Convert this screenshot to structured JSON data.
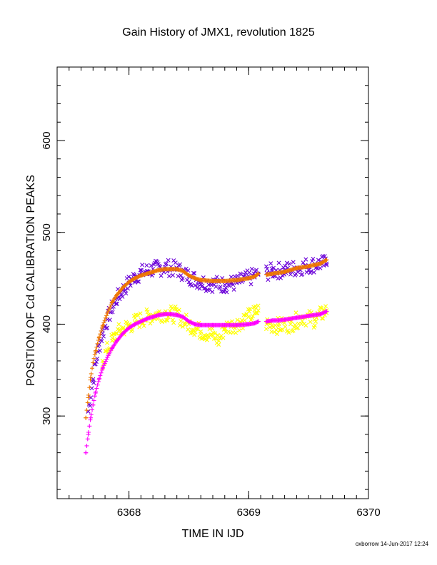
{
  "chart_data": {
    "type": "scatter",
    "title": "Gain History of JMX1, revolution 1825",
    "xlabel": "TIME IN IJD",
    "ylabel": "POSITION OF Cd CALIBRATION PEAKS",
    "xlim": [
      6367.4,
      6370.0
    ],
    "ylim": [
      210,
      680
    ],
    "xticks": [
      6368,
      6369,
      6370
    ],
    "yticks": [
      300,
      400,
      500,
      600
    ],
    "xticklabels": [
      "6368",
      "6369",
      "6370"
    ],
    "yticklabels": [
      "300",
      "400",
      "500",
      "600"
    ],
    "x_minor_step": 0.1,
    "y_minor_step": 20,
    "grid": false,
    "legend": "none",
    "series": [
      {
        "marker": "x",
        "color": "#6a00d8",
        "scatter_amplitude": 9,
        "x": [
          6367.66,
          6367.7,
          6367.74,
          6367.78,
          6367.82,
          6367.86,
          6367.9,
          6367.95,
          6368.0,
          6368.05,
          6368.1,
          6368.15,
          6368.2,
          6368.3,
          6368.4,
          6368.5,
          6368.6,
          6368.7,
          6368.8,
          6368.9,
          6368.95,
          6369.0,
          6369.05,
          6369.08,
          6369.15,
          6369.2,
          6369.3,
          6369.4,
          6369.5,
          6369.6,
          6369.65
        ],
        "y": [
          305,
          340,
          370,
          390,
          405,
          418,
          428,
          437,
          445,
          452,
          456,
          458,
          460,
          462,
          460,
          452,
          446,
          444,
          443,
          445,
          448,
          450,
          453,
          455,
          456,
          458,
          459,
          461,
          464,
          466,
          466
        ]
      },
      {
        "marker": "+",
        "color": "#ee7700",
        "scatter_amplitude": 0,
        "x": [
          6367.64,
          6367.66,
          6367.68,
          6367.7,
          6367.72,
          6367.75,
          6367.78,
          6367.82,
          6367.86,
          6367.9,
          6367.95,
          6368.0,
          6368.05,
          6368.1,
          6368.15,
          6368.2,
          6368.25,
          6368.3,
          6368.35,
          6368.4,
          6368.45,
          6368.5,
          6368.55,
          6368.6,
          6368.7,
          6368.8,
          6368.9,
          6369.0,
          6369.05,
          6369.08,
          6369.15,
          6369.2,
          6369.25,
          6369.3,
          6369.35,
          6369.4,
          6369.5,
          6369.6,
          6369.65
        ],
        "y": [
          298,
          320,
          342,
          358,
          370,
          385,
          398,
          412,
          424,
          432,
          440,
          446,
          450,
          453,
          455,
          457,
          459,
          460,
          460,
          460,
          458,
          453,
          450,
          448,
          447,
          447,
          448,
          450,
          452,
          455,
          454,
          455,
          456,
          457,
          459,
          461,
          463,
          466,
          470
        ]
      },
      {
        "marker": "x",
        "color": "#ffff00",
        "scatter_amplitude": 9,
        "x": [
          6367.78,
          6367.82,
          6367.86,
          6367.9,
          6367.95,
          6368.0,
          6368.05,
          6368.1,
          6368.2,
          6368.3,
          6368.4,
          6368.5,
          6368.6,
          6368.7,
          6368.75,
          6368.8,
          6368.9,
          6369.0,
          6369.05,
          6369.08,
          6369.15,
          6369.25,
          6369.35,
          6369.45,
          6369.55,
          6369.65
        ],
        "y": [
          360,
          372,
          382,
          390,
          395,
          398,
          402,
          405,
          410,
          412,
          410,
          400,
          392,
          388,
          382,
          396,
          400,
          408,
          412,
          415,
          400,
          398,
          400,
          408,
          405,
          415
        ]
      },
      {
        "marker": "+",
        "color": "#ff00ff",
        "scatter_amplitude": 0,
        "x": [
          6367.64,
          6367.66,
          6367.68,
          6367.7,
          6367.72,
          6367.75,
          6367.78,
          6367.82,
          6367.86,
          6367.9,
          6367.95,
          6368.0,
          6368.05,
          6368.1,
          6368.15,
          6368.2,
          6368.25,
          6368.3,
          6368.35,
          6368.4,
          6368.45,
          6368.5,
          6368.55,
          6368.6,
          6368.7,
          6368.8,
          6368.9,
          6369.0,
          6369.05,
          6369.08,
          6369.15,
          6369.2,
          6369.25,
          6369.3,
          6369.35,
          6369.4,
          6369.5,
          6369.6,
          6369.65
        ],
        "y": [
          260,
          280,
          298,
          312,
          325,
          340,
          352,
          364,
          374,
          382,
          390,
          396,
          400,
          403,
          406,
          408,
          410,
          411,
          411,
          410,
          408,
          403,
          400,
          399,
          399,
          399,
          399,
          400,
          401,
          403,
          403,
          404,
          404,
          405,
          406,
          407,
          409,
          411,
          414
        ]
      }
    ]
  },
  "footer": "oxborrow 14-Jun-2017 12:24"
}
